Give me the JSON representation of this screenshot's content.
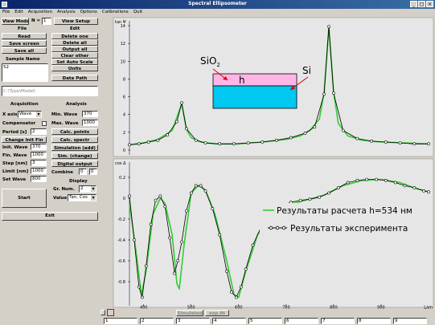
{
  "window": {
    "title": "Spectral Ellipsometer",
    "controls": [
      "_",
      "□",
      "×"
    ]
  },
  "menu": [
    "File",
    "Edit",
    "Acquisition",
    "Analysis",
    "Options",
    "Calibrations",
    "Quit"
  ],
  "panel": {
    "view_model": "View Model",
    "n_label": "N =",
    "n_value": "1",
    "view_setup": "View Setup",
    "file_header": "File",
    "edit_header": "Edit",
    "file_buttons": [
      "Read",
      "Save screen",
      "Save all"
    ],
    "edit_buttons": [
      "Delete one",
      "Delete all",
      "Output all",
      "Clear other",
      "Set Auto Scale",
      "Units",
      "Data Path"
    ],
    "sample_name_label": "Sample Name",
    "sample_name_value": "52",
    "path_value": "C:\\Type\\Model\\",
    "acquisition_header": "Acquisition",
    "analysis_header": "Analysis",
    "x_axis_label": "X axis",
    "x_axis_value": "Wave",
    "compensator_label": "Compensator",
    "period_label": "Period [s]",
    "period_value": "2",
    "change_init_fin": "Change Init Fin",
    "init_wave_label": "Init. Wave",
    "init_wave_value": "370",
    "fin_wave_label": "Fin. Wave",
    "fin_wave_value": "1000",
    "step_label": "Step [nm]",
    "step_value": "3",
    "limit_label": "Limit [nm]",
    "limit_value": "1000",
    "set_wave_label": "Set Wave",
    "set_wave_value": "800",
    "start": "Start",
    "min_wave_label": "Min. Wave",
    "min_wave_value": "370",
    "max_wave_label": "Max. Wave",
    "max_wave_value": "1000",
    "analysis_buttons": [
      "Calc. points",
      "Calc. spectr",
      "Simulation (add)",
      "Sim. (change)",
      "Digital output"
    ],
    "combine_label": "Combine",
    "combine_a": "0",
    "combine_b": "0",
    "display_header": "Display",
    "grnum_label": "Gr. Num.",
    "grnum_value": "2",
    "value_label": "Value",
    "value_value": "Tan, Cos",
    "exit": "Exit"
  },
  "bottom": {
    "tabs": [
      "Simulated",
      "exp.fit"
    ],
    "cells": [
      "1",
      "2",
      "3",
      "4",
      "5",
      "6",
      "7",
      "8",
      "9"
    ]
  },
  "chart_data": [
    {
      "type": "line",
      "title": "tan Ψ",
      "xlim": [
        370,
        1000
      ],
      "ylim": [
        0,
        14
      ],
      "yticks": [
        0,
        2,
        4,
        6,
        8,
        10,
        12,
        14
      ],
      "series": [
        {
          "color": "#33cc33",
          "x": [
            370,
            400,
            430,
            460,
            480,
            490,
            500,
            520,
            550,
            600,
            650,
            700,
            730,
            750,
            770,
            780,
            790,
            800,
            810,
            830,
            860,
            900,
            950,
            1000
          ],
          "y": [
            0.6,
            0.8,
            1.2,
            2.2,
            5.2,
            2.3,
            1.4,
            0.9,
            0.7,
            0.7,
            0.9,
            1.2,
            1.6,
            2.2,
            3.5,
            6.5,
            13.8,
            6.5,
            3.0,
            1.6,
            1.1,
            0.9,
            0.8,
            0.7
          ]
        },
        {
          "color": "#000000",
          "marker": "circle",
          "x": [
            370,
            390,
            410,
            430,
            450,
            470,
            480,
            490,
            510,
            530,
            560,
            590,
            620,
            650,
            680,
            710,
            740,
            760,
            780,
            790,
            800,
            820,
            850,
            880,
            910,
            940,
            970,
            1000
          ],
          "y": [
            0.6,
            0.7,
            0.9,
            1.1,
            1.7,
            3.2,
            5.3,
            2.4,
            1.1,
            0.8,
            0.7,
            0.7,
            0.8,
            0.9,
            1.1,
            1.4,
            1.9,
            2.6,
            6.3,
            13.9,
            6.4,
            2.2,
            1.3,
            1.0,
            0.9,
            0.8,
            0.7,
            0.7
          ]
        }
      ]
    },
    {
      "type": "line",
      "title": "cos Δ",
      "xlim": [
        370,
        1000
      ],
      "ylim": [
        -1,
        0.3
      ],
      "xticks": [
        400,
        500,
        600,
        700,
        800,
        900
      ],
      "yticks": [
        0.2,
        0,
        -0.2,
        -0.4,
        -0.6,
        -0.8
      ],
      "xlabel_right": "Lam",
      "annotation_points_green": [
        [
          370,
          -0.05
        ],
        [
          385,
          -0.55
        ],
        [
          395,
          -0.93
        ],
        [
          405,
          -0.7
        ],
        [
          420,
          -0.15
        ],
        [
          435,
          0.0
        ],
        [
          445,
          -0.05
        ],
        [
          460,
          -0.35
        ],
        [
          470,
          -0.82
        ],
        [
          475,
          -0.87
        ],
        [
          485,
          -0.45
        ],
        [
          500,
          0.05
        ],
        [
          515,
          0.12
        ],
        [
          530,
          0.08
        ],
        [
          550,
          -0.15
        ],
        [
          575,
          -0.6
        ],
        [
          590,
          -0.92
        ],
        [
          600,
          -0.95
        ],
        [
          615,
          -0.7
        ],
        [
          640,
          -0.35
        ],
        [
          670,
          -0.15
        ],
        [
          700,
          -0.07
        ],
        [
          740,
          -0.02
        ],
        [
          780,
          0.03
        ],
        [
          820,
          0.12
        ],
        [
          860,
          0.17
        ],
        [
          900,
          0.18
        ],
        [
          940,
          0.15
        ],
        [
          970,
          0.1
        ],
        [
          1000,
          0.06
        ]
      ],
      "series": [
        {
          "color": "#33cc33",
          "name": "Результаты расчета h=534 нм",
          "x": [
            370,
            385,
            395,
            405,
            420,
            435,
            445,
            460,
            470,
            475,
            485,
            500,
            515,
            530,
            550,
            575,
            590,
            600,
            615,
            640,
            670,
            700,
            740,
            780,
            820,
            860,
            900,
            940,
            970,
            1000
          ],
          "y": [
            -0.05,
            -0.55,
            -0.93,
            -0.7,
            -0.15,
            0.0,
            -0.05,
            -0.35,
            -0.82,
            -0.87,
            -0.45,
            0.05,
            0.12,
            0.08,
            -0.15,
            -0.6,
            -0.92,
            -0.95,
            -0.7,
            -0.35,
            -0.15,
            -0.07,
            -0.02,
            0.03,
            0.12,
            0.17,
            0.18,
            0.15,
            0.1,
            0.06
          ]
        },
        {
          "color": "#000000",
          "marker": "circle",
          "name": "Результаты эксперимента",
          "x": [
            370,
            380,
            390,
            397,
            405,
            415,
            425,
            435,
            445,
            455,
            465,
            472,
            480,
            490,
            500,
            510,
            520,
            530,
            545,
            560,
            575,
            585,
            595,
            605,
            615,
            630,
            650,
            670,
            690,
            710,
            730,
            750,
            770,
            790,
            810,
            830,
            850,
            870,
            890,
            910,
            930,
            950,
            970,
            990,
            1000
          ],
          "y": [
            0.02,
            -0.4,
            -0.85,
            -0.95,
            -0.65,
            -0.25,
            -0.02,
            0.02,
            -0.08,
            -0.38,
            -0.72,
            -0.6,
            -0.42,
            -0.12,
            0.05,
            0.12,
            0.12,
            0.07,
            -0.1,
            -0.35,
            -0.7,
            -0.9,
            -0.95,
            -0.85,
            -0.68,
            -0.45,
            -0.25,
            -0.13,
            -0.07,
            -0.04,
            -0.02,
            -0.01,
            0.01,
            0.05,
            0.1,
            0.15,
            0.17,
            0.18,
            0.18,
            0.17,
            0.15,
            0.12,
            0.1,
            0.07,
            0.06
          ]
        }
      ]
    }
  ],
  "inset": {
    "label_sio2": "SiO",
    "label_sio2_sub": "2",
    "label_si": "Si",
    "label_h": "h",
    "color_film": "#ffb6e6",
    "color_substrate": "#00c8f0"
  },
  "legend": {
    "calc": "Результаты расчета  h=534 нм",
    "exp": "Результаты эксперимента"
  }
}
